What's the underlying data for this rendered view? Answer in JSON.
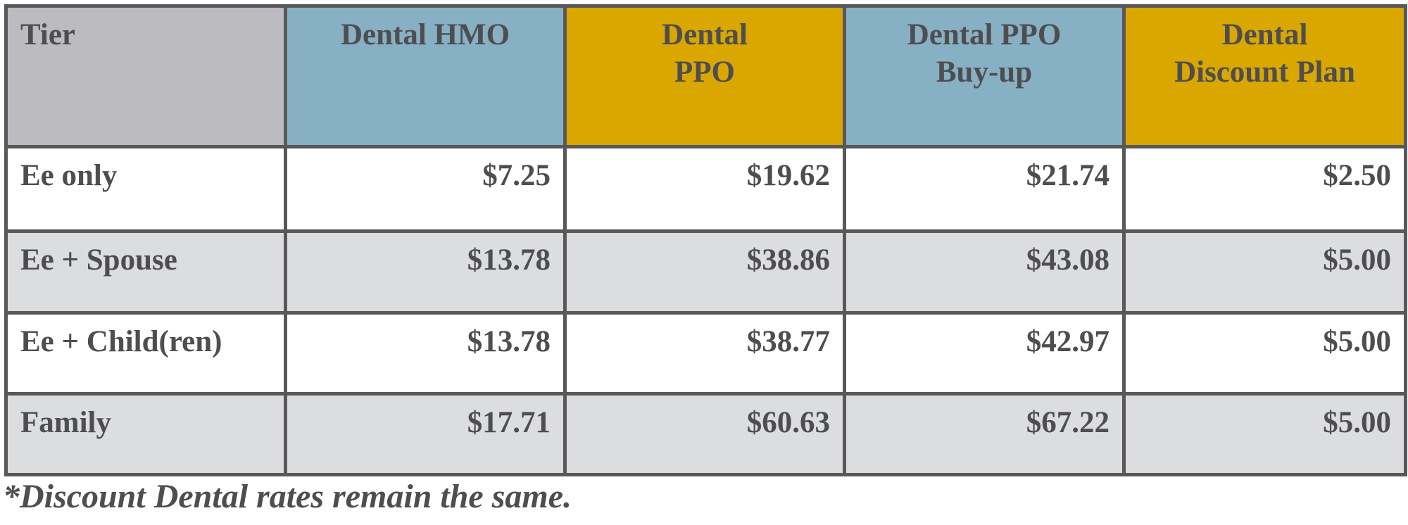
{
  "table": {
    "headers": [
      {
        "label": "Tier",
        "color": "#bcbcc0"
      },
      {
        "label": "Dental HMO",
        "color": "#88b0c4"
      },
      {
        "label": "Dental\nPPO",
        "color": "#d9a700"
      },
      {
        "label": "Dental PPO\nBuy-up",
        "color": "#88b0c4"
      },
      {
        "label": "Dental\nDiscount Plan",
        "color": "#d9a700"
      }
    ],
    "rows": [
      {
        "tier": "Ee only",
        "hmo": "$7.25",
        "ppo": "$19.62",
        "ppo_buyup": "$21.74",
        "discount": "$2.50"
      },
      {
        "tier": "Ee + Spouse",
        "hmo": "$13.78",
        "ppo": "$38.86",
        "ppo_buyup": "$43.08",
        "discount": "$5.00"
      },
      {
        "tier": "Ee + Child(ren)",
        "hmo": "$13.78",
        "ppo": "$38.77",
        "ppo_buyup": "$42.97",
        "discount": "$5.00"
      },
      {
        "tier": "Family",
        "hmo": "$17.71",
        "ppo": "$60.63",
        "ppo_buyup": "$67.22",
        "discount": "$5.00"
      }
    ],
    "row_shading_color": "#dcdddf",
    "border_color": "#58585a",
    "text_color": "#4e4e50"
  },
  "footnote": "*Discount Dental rates remain the same."
}
